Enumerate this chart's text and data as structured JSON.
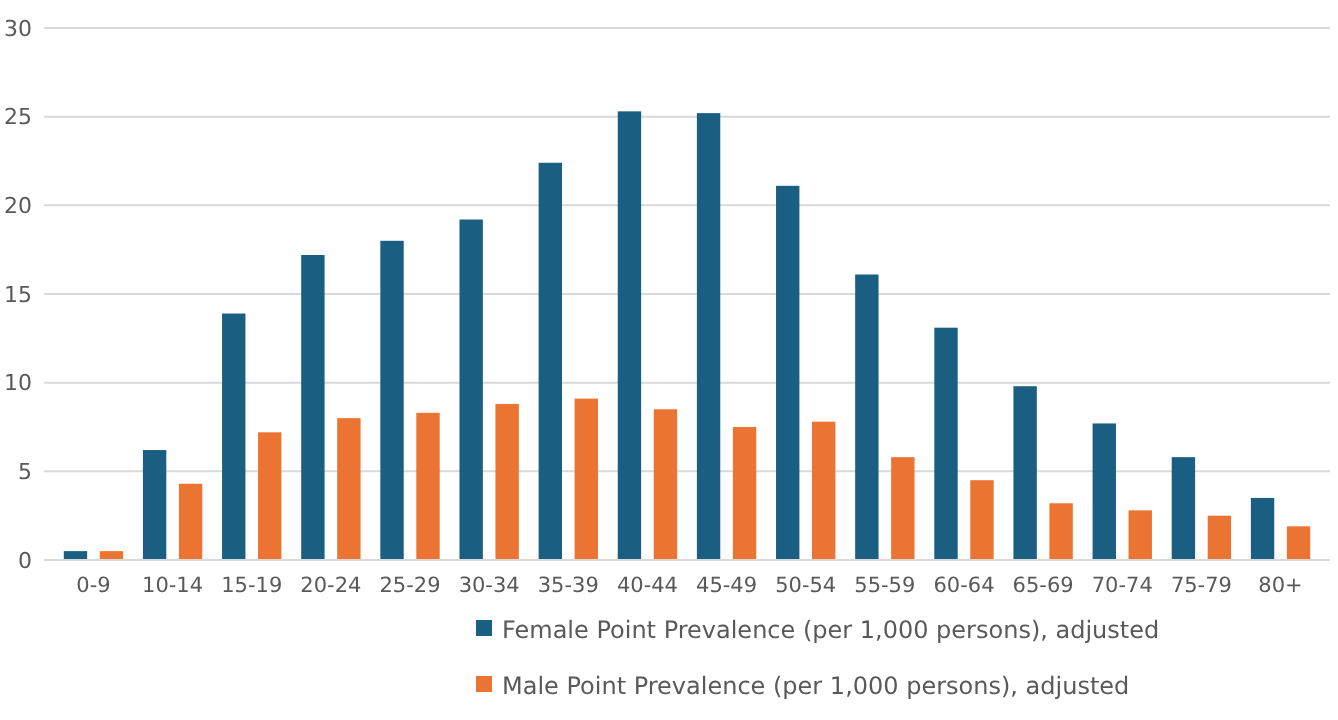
{
  "chart_data": {
    "type": "bar",
    "categories": [
      "0-9",
      "10-14",
      "15-19",
      "20-24",
      "25-29",
      "30-34",
      "35-39",
      "40-44",
      "45-49",
      "50-54",
      "55-59",
      "60-64",
      "65-69",
      "70-74",
      "75-79",
      "80+"
    ],
    "series": [
      {
        "name": "Female Point Prevalence (per 1,000 persons), adjusted",
        "color": "#1a5e82",
        "values": [
          0.5,
          6.2,
          13.9,
          17.2,
          18.0,
          19.2,
          22.4,
          25.3,
          25.2,
          21.1,
          16.1,
          13.1,
          9.8,
          7.7,
          5.8,
          3.5
        ]
      },
      {
        "name": "Male Point Prevalence (per 1,000 persons), adjusted",
        "color": "#ec7433",
        "values": [
          0.5,
          4.3,
          7.2,
          8.0,
          8.3,
          8.8,
          9.1,
          8.5,
          7.5,
          7.8,
          5.8,
          4.5,
          3.2,
          2.8,
          2.5,
          1.9
        ]
      }
    ],
    "ylim": [
      0,
      30
    ],
    "yticks": [
      0,
      5,
      10,
      15,
      20,
      25,
      30
    ],
    "grid": "y",
    "legend": "bottom"
  }
}
